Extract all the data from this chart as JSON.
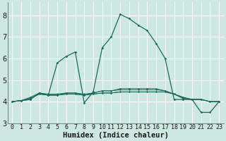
{
  "xlabel": "Humidex (Indice chaleur)",
  "background_color": "#cce8e0",
  "grid_color": "#ffffff",
  "line_color": "#1a6b5a",
  "xlim": [
    -0.5,
    23.5
  ],
  "ylim": [
    3.0,
    8.6
  ],
  "yticks": [
    3,
    4,
    5,
    6,
    7,
    8
  ],
  "xticks": [
    0,
    1,
    2,
    3,
    4,
    5,
    6,
    7,
    8,
    9,
    10,
    11,
    12,
    13,
    14,
    15,
    16,
    17,
    18,
    19,
    20,
    21,
    22,
    23
  ],
  "series": [
    [
      4.0,
      4.05,
      4.1,
      4.4,
      4.3,
      5.8,
      6.1,
      6.3,
      3.95,
      4.45,
      6.5,
      7.0,
      8.05,
      7.85,
      7.55,
      7.3,
      6.7,
      6.0,
      4.1,
      4.1,
      4.1,
      3.5,
      3.5,
      4.0
    ],
    [
      4.0,
      4.05,
      4.15,
      4.35,
      4.3,
      4.3,
      4.35,
      4.35,
      4.3,
      4.35,
      4.4,
      4.4,
      4.45,
      4.45,
      4.45,
      4.45,
      4.45,
      4.45,
      4.35,
      4.15,
      4.1,
      4.1,
      4.0,
      4.0
    ],
    [
      4.0,
      4.05,
      4.2,
      4.4,
      4.35,
      4.35,
      4.4,
      4.4,
      4.35,
      4.4,
      4.5,
      4.5,
      4.55,
      4.55,
      4.55,
      4.55,
      4.55,
      4.5,
      4.35,
      4.2,
      4.1,
      4.1,
      4.0,
      4.0
    ],
    [
      4.0,
      4.05,
      4.15,
      4.35,
      4.3,
      4.3,
      4.35,
      4.35,
      4.3,
      4.35,
      4.4,
      4.4,
      4.45,
      4.45,
      4.45,
      4.45,
      4.45,
      4.45,
      4.35,
      4.15,
      4.1,
      4.1,
      4.0,
      4.0
    ],
    [
      4.0,
      4.05,
      4.1,
      4.4,
      4.3,
      4.3,
      4.4,
      4.4,
      4.3,
      4.4,
      4.5,
      4.5,
      4.6,
      4.6,
      4.6,
      4.6,
      4.6,
      4.5,
      4.35,
      4.2,
      4.1,
      4.1,
      4.0,
      4.0
    ]
  ],
  "xlabel_fontsize": 7.5,
  "ytick_fontsize": 7.5,
  "xtick_fontsize": 6.0
}
